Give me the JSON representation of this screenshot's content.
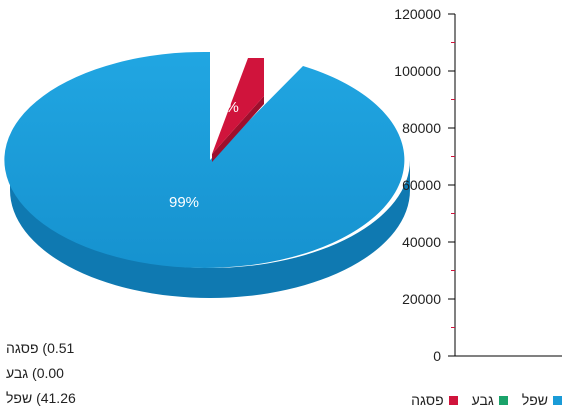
{
  "chart_data": [
    {
      "type": "pie",
      "title": "",
      "slices": [
        {
          "name": "פסגה",
          "percent_label": "1%",
          "color": "#d0143c"
        },
        {
          "name": "גבע",
          "percent_label": "",
          "color": "#1aa36a"
        },
        {
          "name": "שפל",
          "percent_label": "99%",
          "color": "#1a9bd7"
        }
      ],
      "values": [
        0.51,
        0.0,
        41.26
      ]
    },
    {
      "type": "bar",
      "title": "",
      "categories": [
        "שפל",
        "גבע",
        "פסגה"
      ],
      "yticks": [
        "0",
        "20000",
        "40000",
        "60000",
        "80000",
        "100000",
        "120000"
      ],
      "ylim": [
        0,
        120000
      ],
      "xlabel": "",
      "ylabel": ""
    }
  ],
  "side_labels": [
    "0.51) פסגה",
    "0.00) גבע",
    "41.26) שפל"
  ],
  "legend": [
    {
      "label": "שפל",
      "color": "#1a9bd7"
    },
    {
      "label": "גבע",
      "color": "#1aa36a"
    },
    {
      "label": "פסגה",
      "color": "#d0143c"
    }
  ]
}
